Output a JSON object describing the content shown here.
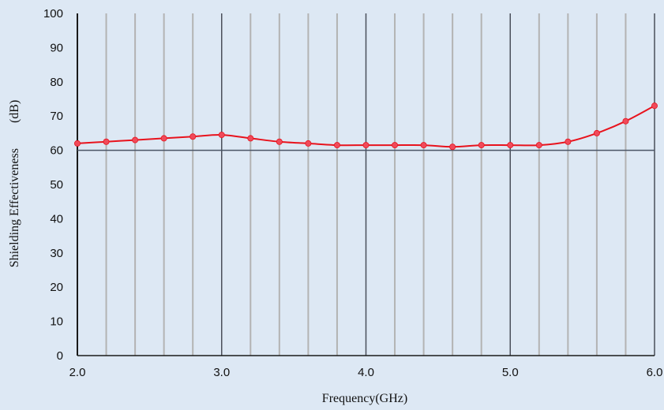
{
  "chart_data": {
    "type": "line",
    "title": "",
    "xlabel": "Frequency(GHz)",
    "ylabel": "Shielding Effectiveness　　(dB)",
    "xlim": [
      2.0,
      6.0
    ],
    "ylim": [
      0,
      100
    ],
    "x_major_ticks": [
      2.0,
      3.0,
      4.0,
      5.0,
      6.0
    ],
    "x_tick_labels": [
      "2.0",
      "3.0",
      "4.0",
      "5.0",
      "6.0"
    ],
    "x_minor_ticks": [
      2.2,
      2.4,
      2.6,
      2.8,
      3.2,
      3.4,
      3.6,
      3.8,
      4.2,
      4.4,
      4.6,
      4.8,
      5.2,
      5.4,
      5.6,
      5.8
    ],
    "y_ticks": [
      0,
      10,
      20,
      30,
      40,
      50,
      60,
      70,
      80,
      90,
      100
    ],
    "y_tick_labels": [
      "0",
      "10",
      "20",
      "30",
      "40",
      "50",
      "60",
      "70",
      "80",
      "90",
      "100"
    ],
    "reference_line": 60,
    "grid": true,
    "series": [
      {
        "color": "#e8131d",
        "marker_color": "#f04a5a",
        "x": [
          2.0,
          2.2,
          2.4,
          2.6,
          2.8,
          3.0,
          3.2,
          3.4,
          3.6,
          3.8,
          4.0,
          4.2,
          4.4,
          4.6,
          4.8,
          5.0,
          5.2,
          5.4,
          5.6,
          5.8,
          6.0
        ],
        "y": [
          62.0,
          62.5,
          63.0,
          63.5,
          64.0,
          64.5,
          63.5,
          62.5,
          62.0,
          61.5,
          61.5,
          61.5,
          61.5,
          61.0,
          61.5,
          61.5,
          61.5,
          62.5,
          65.0,
          68.5,
          73.0
        ]
      }
    ]
  }
}
